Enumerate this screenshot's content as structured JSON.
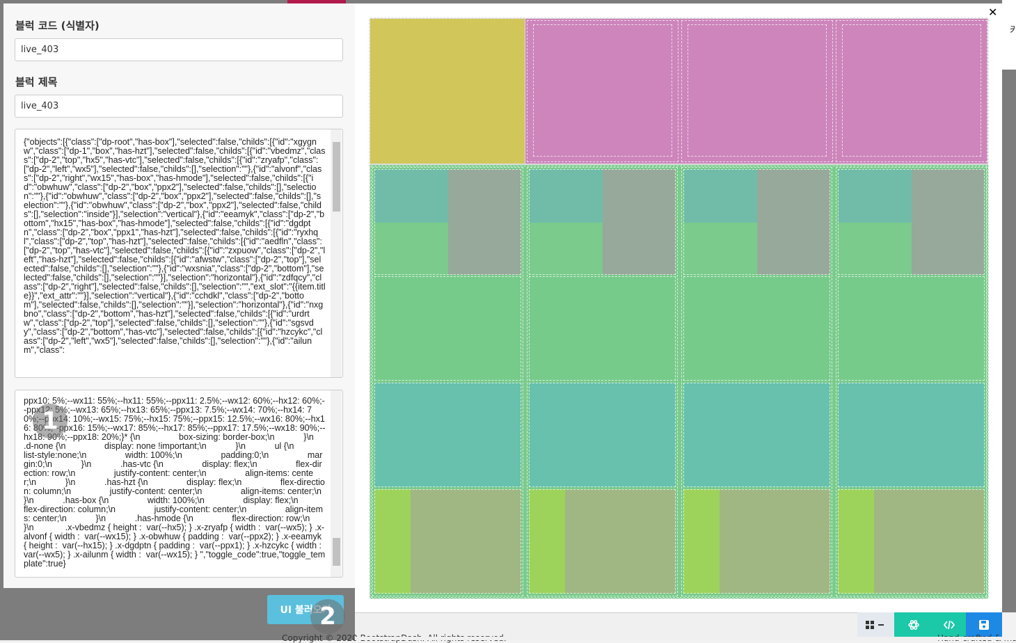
{
  "form": {
    "code_label": "블럭 코드 (식별자)",
    "code_value": "live_403",
    "title_label": "블럭 제목",
    "title_value": "live_403",
    "json_text": "{\"objects\":[{\"class\":[\"dp-root\",\"has-box\"],\"selected\":false,\"childs\":[{\"id\":\"xgygnw\",\"class\":[\"dp-1\",\"box\",\"has-hzt\"],\"selected\":false,\"childs\":[{\"id\":\"vbedmz\",\"class\":[\"dp-2\",\"top\",\"hx5\",\"has-vtc\"],\"selected\":false,\"childs\":[{\"id\":\"zryafp\",\"class\":[\"dp-2\",\"left\",\"wx5\"],\"selected\":false,\"childs\":[],\"selection\":\"\"},{\"id\":\"alvonf\",\"class\":[\"dp-2\",\"right\",\"wx15\",\"has-box\",\"has-hmode\"],\"selected\":false,\"childs\":[{\"id\":\"obwhuw\",\"class\":[\"dp-2\",\"box\",\"ppx2\"],\"selected\":false,\"childs\":[],\"selection\":\"\"},{\"id\":\"obwhuw\",\"class\":[\"dp-2\",\"box\",\"ppx2\"],\"selected\":false,\"childs\":[],\"selection\":\"\"},{\"id\":\"obwhuw\",\"class\":[\"dp-2\",\"box\",\"ppx2\"],\"selected\":false,\"childs\":[],\"selection\":\"inside\"}],\"selection\":\"vertical\"},{\"id\":\"eeamyk\",\"class\":[\"dp-2\",\"bottom\",\"hx15\",\"has-box\",\"has-hmode\"],\"selected\":false,\"childs\":[{\"id\":\"dgdptn\",\"class\":[\"dp-2\",\"box\",\"ppx1\",\"has-hzt\"],\"selected\":false,\"childs\":[{\"id\":\"ryxhql\",\"class\":[\"dp-2\",\"top\",\"has-hzt\"],\"selected\":false,\"childs\":[{\"id\":\"aedfln\",\"class\":[\"dp-2\",\"top\",\"has-vtc\"],\"selected\":false,\"childs\":[{\"id\":\"zxpuow\",\"class\":[\"dp-2\",\"left\",\"has-hzt\"],\"selected\":false,\"childs\":[{\"id\":\"afwstw\",\"class\":[\"dp-2\",\"top\"],\"selected\":false,\"childs\":[],\"selection\":\"\"},{\"id\":\"wxsnia\",\"class\":[\"dp-2\",\"bottom\"],\"selected\":false,\"childs\":[],\"selection\":\"\"}],\"selection\":\"horizontal\"},{\"id\":\"zdfqcy\",\"class\":[\"dp-2\",\"right\"],\"selected\":false,\"childs\":[],\"selection\":\"\",\"ext_slot\":\"{{item.title}}\",\"ext_attr\":\"\"}],\"selection\":\"vertical\"},{\"id\":\"cchdkl\",\"class\":[\"dp-2\",\"bottom\"],\"selected\":false,\"childs\":[],\"selection\":\"\"}],\"selection\":\"horizontal\"},{\"id\":\"nxgbno\",\"class\":[\"dp-2\",\"bottom\",\"has-hzt\"],\"selected\":false,\"childs\":[{\"id\":\"urdrtw\",\"class\":[\"dp-2\",\"top\"],\"selected\":false,\"childs\":[],\"selection\":\"\"},{\"id\":\"sgsvdy\",\"class\":[\"dp-2\",\"bottom\",\"has-vtc\"],\"selected\":false,\"childs\":[{\"id\":\"hzcykc\",\"class\":[\"dp-2\",\"left\",\"wx5\"],\"selected\":false,\"childs\":[],\"selection\":\"\"},{\"id\":\"ailunm\",\"class\":",
    "css_text": "ppx10: 5%;--wx11: 55%;--hx11: 55%;--ppx11: 2.5%;--wx12: 60%;--hx12: 60%;--ppx12: 5%;--wx13: 65%;--hx13: 65%;--ppx13: 7.5%;--wx14: 70%;--hx14: 70%;--ppx14: 10%;--wx15: 75%;--hx15: 75%;--ppx15: 12.5%;--wx16: 80%;--hx16: 80%;--ppx16: 15%;--wx17: 85%;--hx17: 85%;--ppx17: 17.5%;--wx18: 90%;--hx18: 90%;--ppx18: 20%;}* {\\n                box-sizing: border-box;\\n            }\\n            .d-none {\\n                display: none !important;\\n            }\\n            ul {\\n                list-style:none;\\n                width: 100%;\\n                padding:0;\\n                margin:0;\\n            }\\n            .has-vtc {\\n                display: flex;\\n                flex-direction: row;\\n                justify-content: center;\\n                align-items: center;\\n            }\\n            .has-hzt {\\n                display: flex;\\n                flex-direction: column;\\n                justify-content: center;\\n                align-items: center;\\n            }\\n            .has-box {\\n                width: 100%;\\n                display: flex;\\n                flex-direction: column;\\n                justify-content: center;\\n                align-items: center;\\n            }\\n            .has-hmode {\\n                flex-direction: row;\\n            }\\n             .x-vbedmz { height :  var(--hx5); } .x-zryafp { width :  var(--wx5); } .x-alvonf { width :  var(--wx15); } .x-obwhuw { padding :  var(--ppx2); } .x-eeamyk { height :  var(--hx15); } .x-dgdptn { padding :  var(--ppx1); } .x-hzcykc { width :  var(--wx5); } .x-ailunm { width :  var(--wx15); } \",\"toggle_code\":true,\"toggle_template\":true}",
    "load_button": "UI 불러오기"
  },
  "badges": [
    "1",
    "2"
  ],
  "footer": {
    "copyright": "Copyright © 2020 BootstrapDash. All rights reserved.",
    "credit": "Hand-crafted & made"
  },
  "edge_text": "카"
}
